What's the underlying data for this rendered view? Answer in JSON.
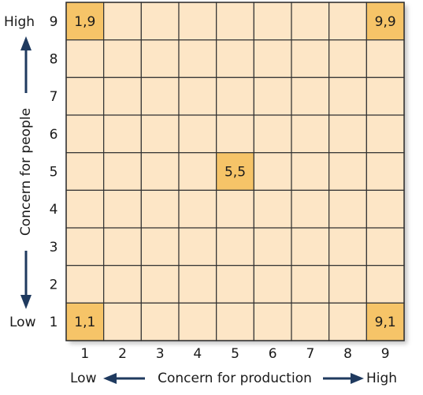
{
  "axis_y": {
    "title": "Concern for people",
    "high": "High",
    "low": "Low",
    "labels": [
      "1",
      "2",
      "3",
      "4",
      "5",
      "6",
      "7",
      "8",
      "9"
    ]
  },
  "axis_x": {
    "title": "Concern for production",
    "high": "High",
    "low": "Low",
    "labels": [
      "1",
      "2",
      "3",
      "4",
      "5",
      "6",
      "7",
      "8",
      "9"
    ]
  },
  "cells": [
    "1,9",
    "9,9",
    "5,5",
    "1,1",
    "9,1"
  ]
}
